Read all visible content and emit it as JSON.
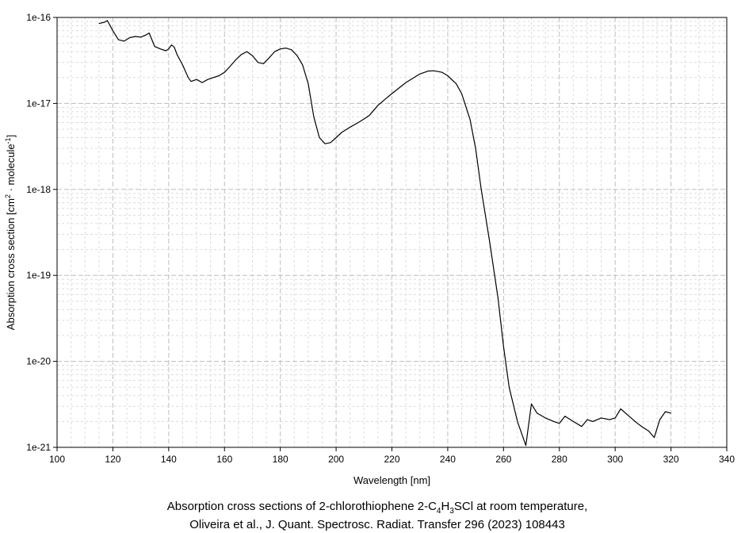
{
  "chart_data": {
    "type": "line",
    "xlabel": "Wavelength [nm]",
    "ylabel": {
      "parts": [
        "Absorption cross section [cm",
        "2",
        " · molecule",
        "-1",
        "]"
      ]
    },
    "xlim": [
      100,
      340
    ],
    "ylim": [
      1e-21,
      1e-16
    ],
    "yscale": "log",
    "grid": true,
    "x_ticks": [
      "100",
      "120",
      "140",
      "160",
      "180",
      "200",
      "220",
      "240",
      "260",
      "280",
      "300",
      "320",
      "340"
    ],
    "y_ticks": [
      "1e-21",
      "1e-20",
      "1e-19",
      "1e-18",
      "1e-17",
      "1e-16"
    ],
    "caption_line1": {
      "parts": [
        "Absorption cross sections of 2-chlorothiophene 2-C",
        "4",
        "H",
        "3",
        "SCl at room temperature,"
      ]
    },
    "caption_line2": "Oliveira et al., J. Quant. Spectrosc. Radiat. Transfer 296 (2023) 108443",
    "series": [
      {
        "x": [
          115,
          117,
          118,
          120,
          122,
          124,
          126,
          128,
          130,
          132,
          133,
          135,
          137,
          139,
          140,
          141,
          142,
          143,
          145,
          147,
          148,
          150,
          152,
          154,
          156,
          158,
          160,
          162,
          164,
          166,
          168,
          170,
          172,
          174,
          176,
          178,
          180,
          182,
          184,
          186,
          188,
          190,
          192,
          194,
          196,
          198,
          200,
          202,
          205,
          208,
          210,
          212,
          215,
          218,
          220,
          225,
          230,
          233,
          235,
          238,
          240,
          243,
          245,
          248,
          250,
          252,
          255,
          258,
          260,
          262,
          265,
          268,
          270,
          272,
          275,
          278,
          280,
          282,
          285,
          288,
          290,
          292,
          295,
          298,
          300,
          302,
          305,
          308,
          310,
          312,
          314,
          316,
          318,
          320
        ],
        "y": [
          8.5e-17,
          8.8e-17,
          9.2e-17,
          7e-17,
          5.5e-17,
          5.3e-17,
          5.8e-17,
          6e-17,
          5.9e-17,
          6.3e-17,
          6.6e-17,
          4.6e-17,
          4.3e-17,
          4.1e-17,
          4.3e-17,
          4.8e-17,
          4.5e-17,
          3.7e-17,
          2.8e-17,
          2e-17,
          1.8e-17,
          1.9e-17,
          1.75e-17,
          1.9e-17,
          2e-17,
          2.1e-17,
          2.3e-17,
          2.7e-17,
          3.2e-17,
          3.7e-17,
          4e-17,
          3.6e-17,
          3e-17,
          2.9e-17,
          3.4e-17,
          4e-17,
          4.3e-17,
          4.4e-17,
          4.2e-17,
          3.6e-17,
          2.8e-17,
          1.7e-17,
          7e-18,
          4e-18,
          3.4e-18,
          3.5e-18,
          4e-18,
          4.6e-18,
          5.3e-18,
          6e-18,
          6.6e-18,
          7.3e-18,
          9.5e-18,
          1.15e-17,
          1.3e-17,
          1.75e-17,
          2.2e-17,
          2.38e-17,
          2.4e-17,
          2.3e-17,
          2.1e-17,
          1.7e-17,
          1.3e-17,
          6.5e-18,
          3e-18,
          1e-18,
          2.5e-19,
          5.5e-20,
          1.5e-20,
          5e-21,
          2e-21,
          1.05e-21,
          3.2e-21,
          2.5e-21,
          2.2e-21,
          2e-21,
          1.9e-21,
          2.3e-21,
          2e-21,
          1.75e-21,
          2.1e-21,
          2e-21,
          2.2e-21,
          2.1e-21,
          2.2e-21,
          2.8e-21,
          2.3e-21,
          1.9e-21,
          1.7e-21,
          1.55e-21,
          1.3e-21,
          2.1e-21,
          2.6e-21,
          2.5e-21
        ]
      }
    ]
  }
}
